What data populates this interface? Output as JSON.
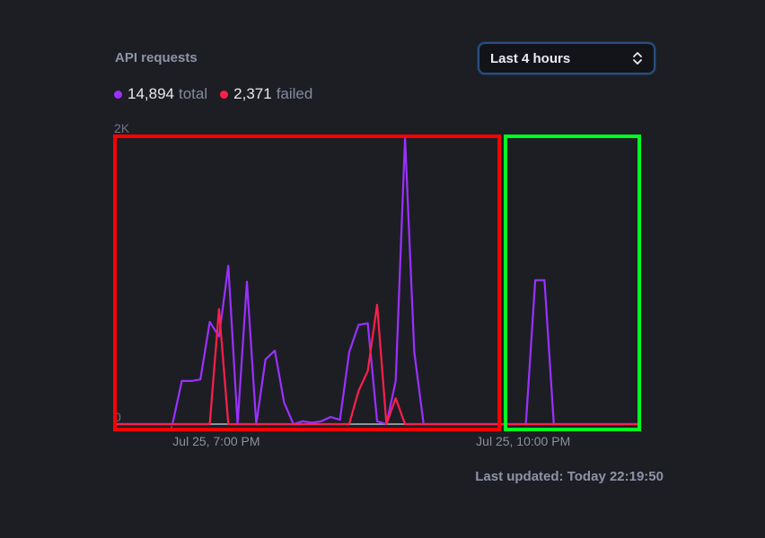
{
  "widget": {
    "title": "API requests",
    "range_select": {
      "selected": "Last 4 hours",
      "icon": "chevron-up-down-icon"
    },
    "legend": [
      {
        "value": "14,894",
        "label": "total",
        "color": "#9b30ff"
      },
      {
        "value": "2,371",
        "label": "failed",
        "color": "#ff1f4b"
      }
    ],
    "last_updated": "Last updated: Today 22:19:50"
  },
  "highlight_boxes": {
    "colors": [
      "#ff0000",
      "#00ff20"
    ]
  },
  "chart_data": {
    "type": "line",
    "title": "API requests",
    "xlabel": "",
    "ylabel": "",
    "ylim": [
      0,
      2000
    ],
    "xlim": [
      "Jul 25, 5:56 PM",
      "Jul 25, 11:03 PM"
    ],
    "y_ticks": [
      "2K",
      "0"
    ],
    "x_ticks": [
      "Jul 25, 7:00 PM",
      "Jul 25, 10:00 PM"
    ],
    "grid": false,
    "legend_position": "top-left",
    "x": [
      "Jul 25, 5:56 PM",
      "Jul 25, 6:01 PM",
      "Jul 25, 6:07 PM",
      "Jul 25, 6:12 PM",
      "Jul 25, 6:18 PM",
      "Jul 25, 6:24 PM",
      "Jul 25, 6:29 PM",
      "Jul 25, 6:35 PM",
      "Jul 25, 6:40 PM",
      "Jul 25, 6:46 PM",
      "Jul 25, 6:51 PM",
      "Jul 25, 6:57 PM",
      "Jul 25, 7:02 PM",
      "Jul 25, 7:08 PM",
      "Jul 25, 7:13 PM",
      "Jul 25, 7:19 PM",
      "Jul 25, 7:24 PM",
      "Jul 25, 7:30 PM",
      "Jul 25, 7:36 PM",
      "Jul 25, 7:41 PM",
      "Jul 25, 7:47 PM",
      "Jul 25, 7:52 PM",
      "Jul 25, 7:58 PM",
      "Jul 25, 8:03 PM",
      "Jul 25, 8:09 PM",
      "Jul 25, 8:14 PM",
      "Jul 25, 8:20 PM",
      "Jul 25, 8:25 PM",
      "Jul 25, 8:31 PM",
      "Jul 25, 8:36 PM",
      "Jul 25, 8:42 PM",
      "Jul 25, 8:48 PM",
      "Jul 25, 8:53 PM",
      "Jul 25, 8:59 PM",
      "Jul 25, 9:04 PM",
      "Jul 25, 9:10 PM",
      "Jul 25, 9:15 PM",
      "Jul 25, 9:21 PM",
      "Jul 25, 9:26 PM",
      "Jul 25, 9:32 PM",
      "Jul 25, 9:37 PM",
      "Jul 25, 9:43 PM",
      "Jul 25, 9:48 PM",
      "Jul 25, 9:54 PM",
      "Jul 25, 10:00 PM",
      "Jul 25, 10:05 PM",
      "Jul 25, 10:11 PM",
      "Jul 25, 10:16 PM",
      "Jul 25, 10:22 PM",
      "Jul 25, 10:27 PM",
      "Jul 25, 10:33 PM",
      "Jul 25, 10:38 PM",
      "Jul 25, 10:44 PM",
      "Jul 25, 10:49 PM",
      "Jul 25, 10:55 PM",
      "Jul 25, 11:00 PM",
      "Jul 25, 11:03 PM"
    ],
    "series": [
      {
        "name": "total",
        "color": "#9b30ff",
        "values": [
          0,
          0,
          0,
          0,
          0,
          0,
          0,
          300,
          300,
          310,
          710,
          610,
          1100,
          0,
          990,
          0,
          450,
          510,
          150,
          0,
          20,
          10,
          20,
          50,
          30,
          500,
          690,
          700,
          20,
          0,
          300,
          1990,
          500,
          0,
          0,
          0,
          0,
          0,
          0,
          0,
          0,
          0,
          0,
          0,
          0,
          1000,
          1000,
          0,
          0,
          0,
          0,
          0,
          0,
          0,
          0,
          0,
          0
        ]
      },
      {
        "name": "failed",
        "color": "#ff1f4b",
        "values": [
          0,
          0,
          0,
          0,
          0,
          0,
          0,
          0,
          0,
          0,
          0,
          800,
          0,
          0,
          0,
          0,
          0,
          0,
          0,
          0,
          0,
          0,
          0,
          0,
          0,
          0,
          230,
          370,
          830,
          0,
          180,
          0,
          0,
          0,
          0,
          0,
          0,
          0,
          0,
          0,
          0,
          0,
          0,
          0,
          0,
          0,
          0,
          0,
          0,
          0,
          0,
          0,
          0,
          0,
          0,
          0,
          0
        ]
      }
    ]
  }
}
